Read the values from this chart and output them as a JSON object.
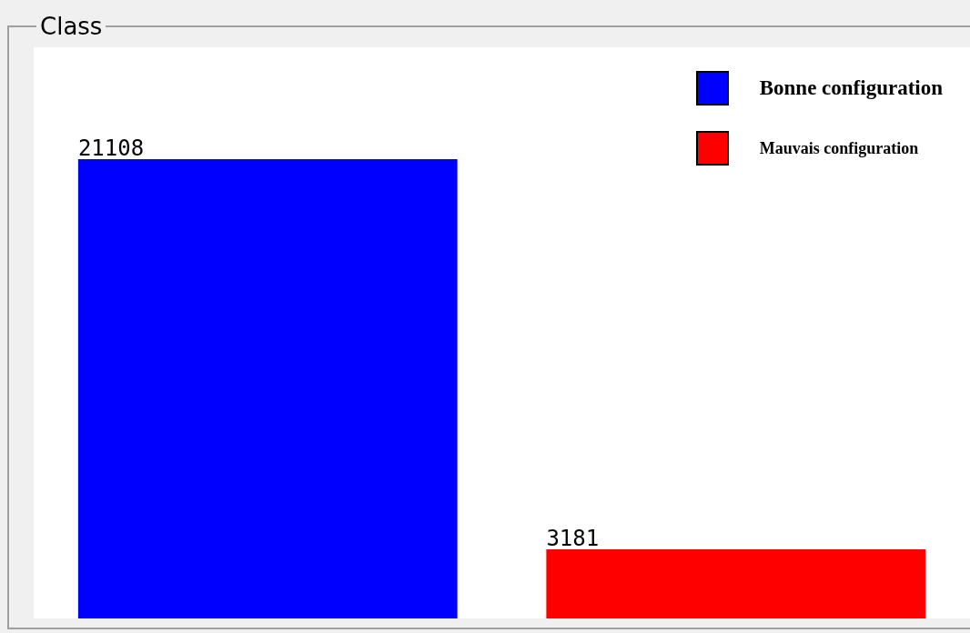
{
  "chart_data": {
    "type": "bar",
    "title": "Class",
    "categories": [
      null,
      null
    ],
    "stacked": true,
    "data_labels": true,
    "legend": "top right",
    "series": [
      {
        "name": "Bonne configuration",
        "color": "#0000ff",
        "values": [
          21108,
          null
        ]
      },
      {
        "name": "Mauvais configuration",
        "color": "#ff0000",
        "values": [
          null,
          3181
        ]
      }
    ]
  }
}
